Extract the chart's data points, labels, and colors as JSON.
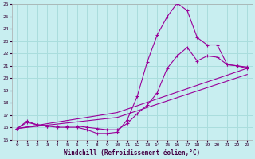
{
  "xlabel": "Windchill (Refroidissement éolien,°C)",
  "bg_color": "#c8eef0",
  "grid_color": "#aadddd",
  "line_color": "#990099",
  "xlim": [
    -0.5,
    23.5
  ],
  "ylim": [
    15,
    26
  ],
  "yticks": [
    15,
    16,
    17,
    18,
    19,
    20,
    21,
    22,
    23,
    24,
    25,
    26
  ],
  "xticks": [
    0,
    1,
    2,
    3,
    4,
    5,
    6,
    7,
    8,
    9,
    10,
    11,
    12,
    13,
    14,
    15,
    16,
    17,
    18,
    19,
    20,
    21,
    22,
    23
  ],
  "series": {
    "line1_x": [
      0,
      1,
      2,
      3,
      4,
      5,
      6,
      7,
      8,
      9,
      10,
      11,
      12,
      13,
      14,
      15,
      16,
      17,
      18,
      19,
      20,
      21,
      22,
      23
    ],
    "line1_y": [
      15.9,
      16.5,
      16.2,
      16.1,
      16.0,
      16.0,
      16.0,
      15.8,
      15.5,
      15.5,
      15.6,
      16.6,
      18.5,
      21.3,
      23.5,
      25.0,
      26.1,
      25.5,
      23.3,
      22.7,
      22.7,
      21.1,
      21.0,
      20.8
    ],
    "line2_x": [
      0,
      1,
      2,
      3,
      4,
      5,
      6,
      7,
      8,
      9,
      10,
      11,
      12,
      13,
      14,
      15,
      16,
      17,
      18,
      19,
      20,
      21,
      22,
      23
    ],
    "line2_y": [
      15.9,
      16.4,
      16.2,
      16.1,
      16.1,
      16.1,
      16.1,
      16.0,
      15.9,
      15.8,
      15.8,
      16.3,
      17.1,
      17.8,
      18.8,
      20.8,
      21.8,
      22.5,
      21.4,
      21.8,
      21.7,
      21.1,
      21.0,
      20.9
    ],
    "line3_x": [
      0,
      10,
      23
    ],
    "line3_y": [
      15.9,
      17.2,
      20.8
    ],
    "line4_x": [
      0,
      10,
      23
    ],
    "line4_y": [
      15.9,
      16.8,
      20.3
    ]
  }
}
